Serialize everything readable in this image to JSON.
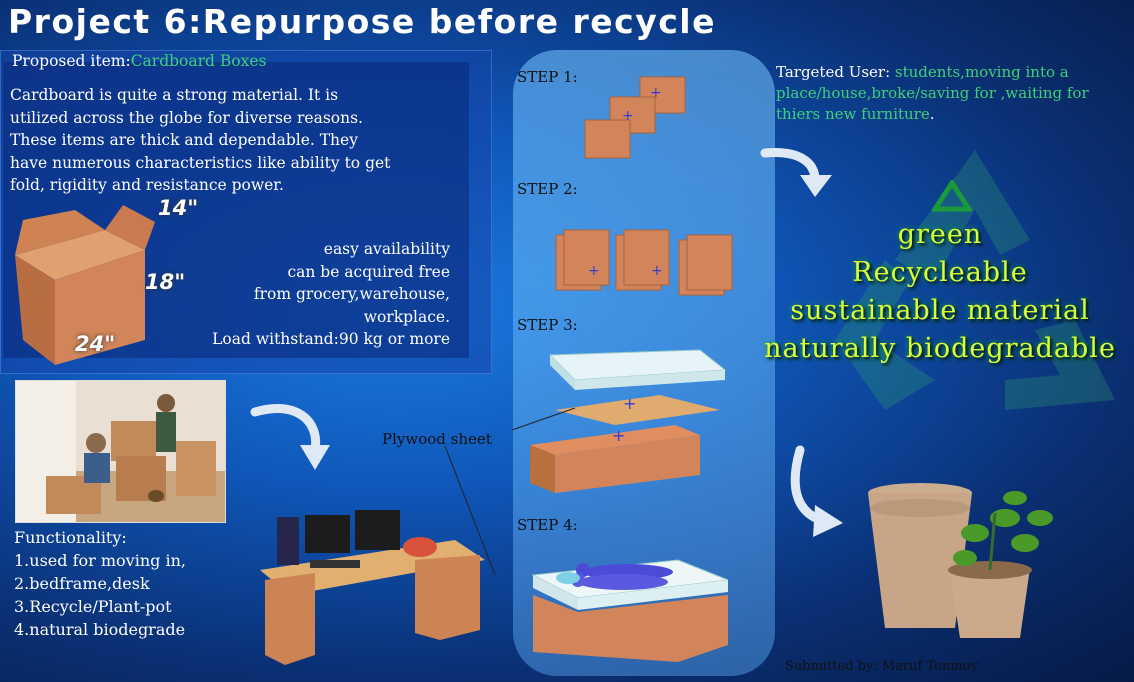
{
  "title": "Project 6:Repurpose before recycle",
  "proposed": {
    "label": "Proposed item:",
    "item": "Cardboard Boxes"
  },
  "description": [
    "Cardboard is quite a strong material. It is",
    "utilized across the globe for diverse reasons.",
    "These items are thick and dependable. They",
    "have numerous characteristics like ability to get",
    "fold, rigidity and resistance power."
  ],
  "dimensions": {
    "width": "14\"",
    "height": "18\"",
    "length": "24\""
  },
  "features": [
    "easy availability",
    "can be acquired free",
    "from grocery,warehouse,",
    "workplace.",
    "Load withstand:90 kg or more"
  ],
  "functionality": {
    "heading": "Functionality:",
    "items": [
      "1.used for moving in,",
      "2.bedframe,desk",
      "3.Recycle/Plant-pot",
      "4.natural biodegrade"
    ]
  },
  "steps": [
    "STEP 1:",
    "STEP 2:",
    "STEP 3:",
    "STEP 4:"
  ],
  "plywood_label": "Plywood sheet",
  "target": {
    "label": "Targeted User: ",
    "text": "students,moving into a place/house,broke/saving for ,waiting for thiers new furniture",
    "end": "."
  },
  "properties": [
    "green",
    "Recycleable",
    "sustainable material",
    "naturally biodegradable"
  ],
  "submitted": "Submitted by: Maruf Tonmoy",
  "colors": {
    "accent_green": "#3dd17a",
    "property_text": "#d9ff3a",
    "cardboard": "#d2855a"
  }
}
